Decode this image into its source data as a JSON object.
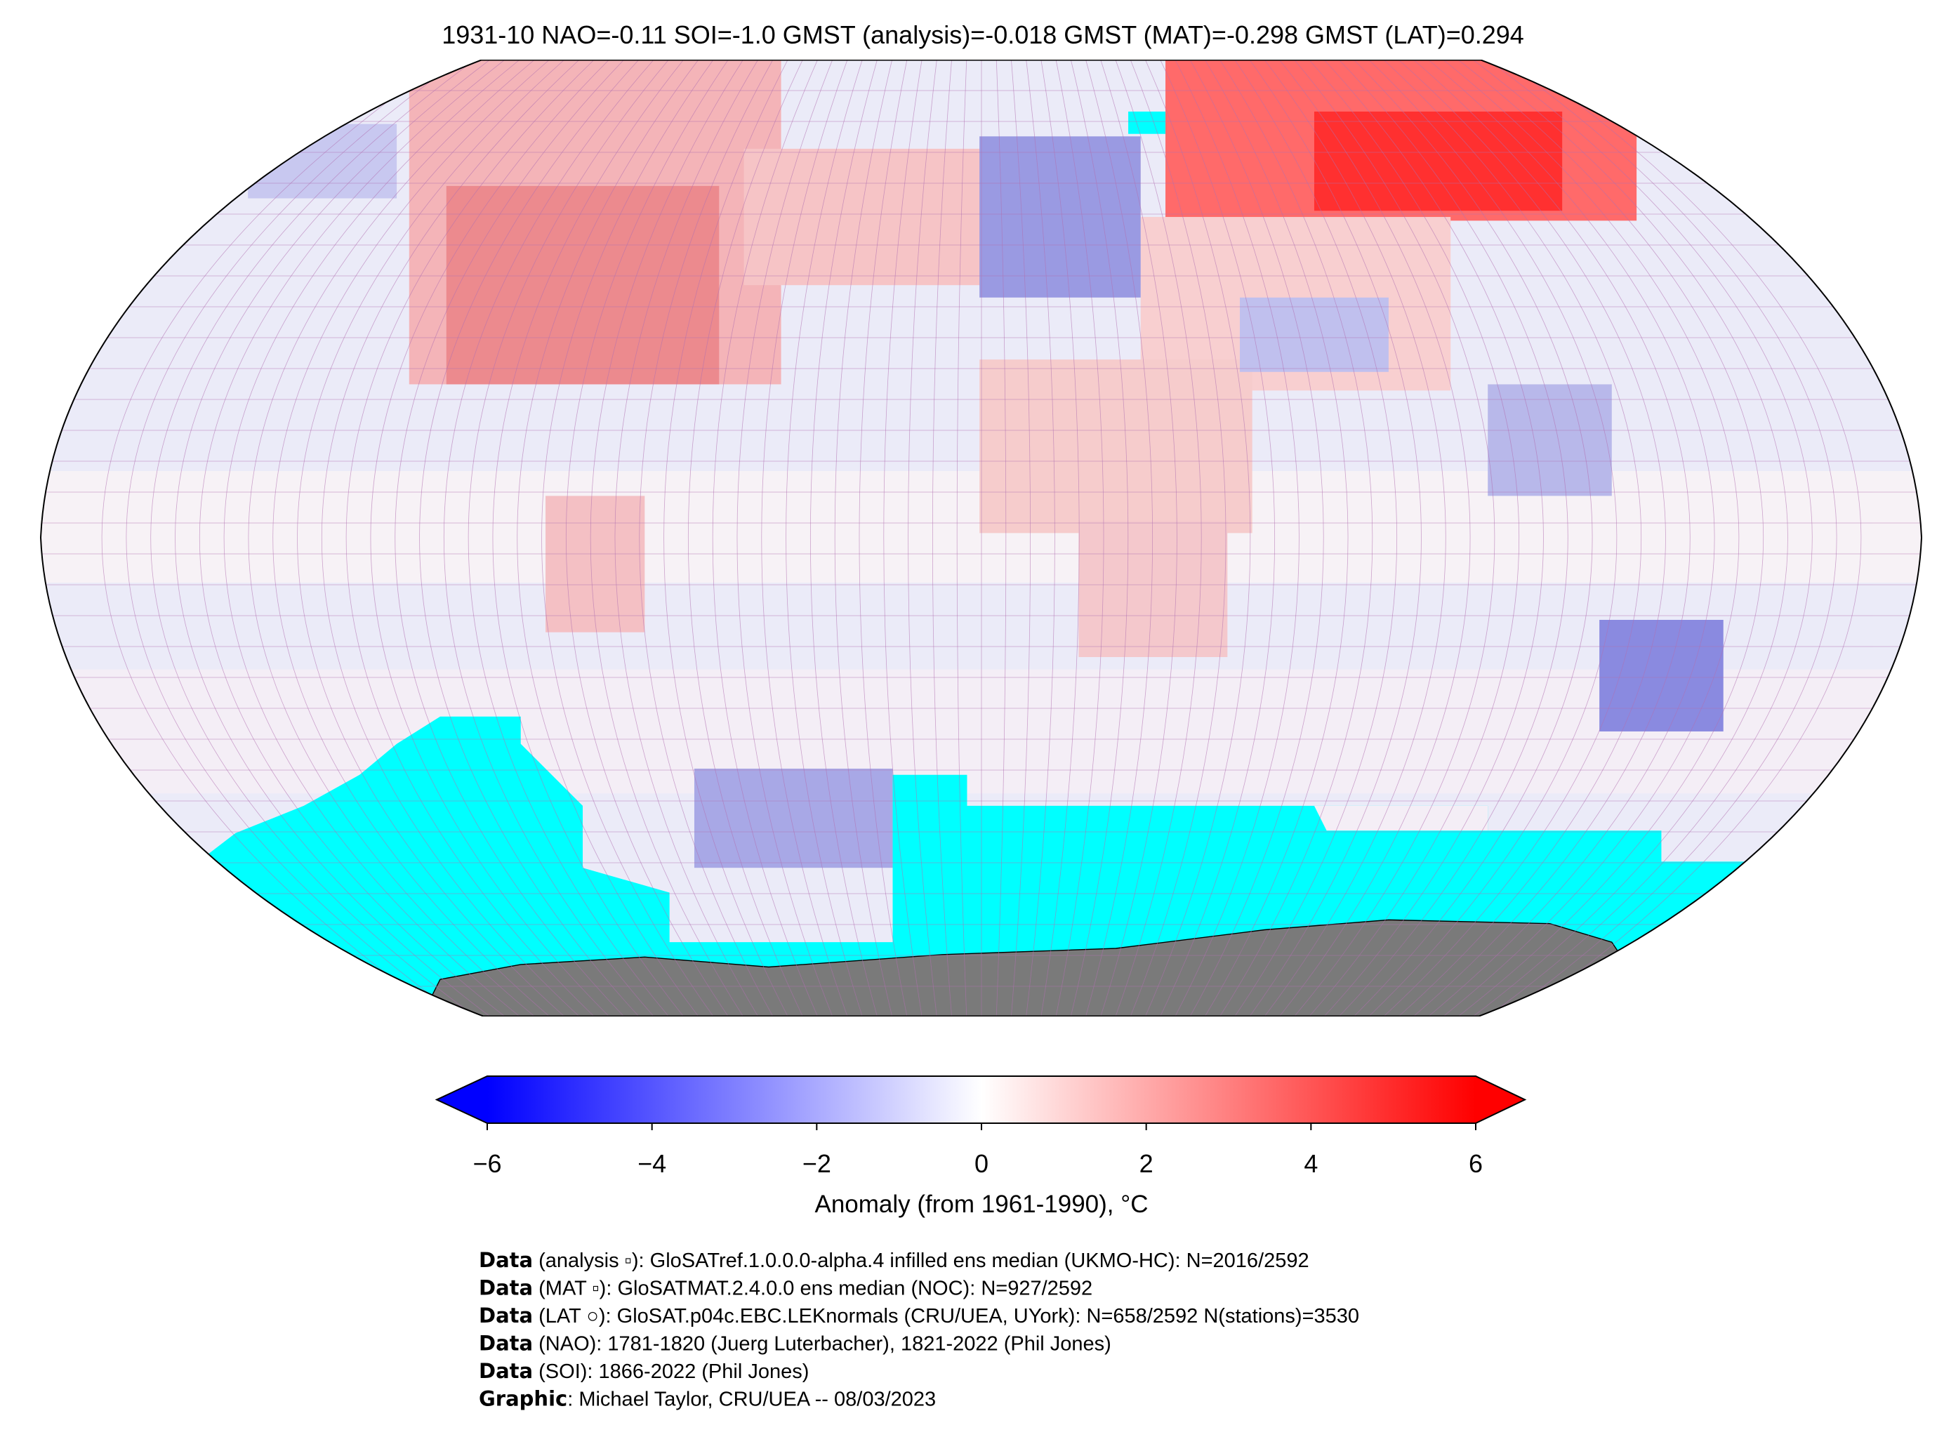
{
  "title": "1931-10 NAO=-0.11 SOI=-1.0 GMST (analysis)=-0.018 GMST (MAT)=-0.298 GMST (LAT)=0.294",
  "colorbar": {
    "label": "Anomaly (from 1961-1990), °C",
    "lim": [
      -6,
      6
    ],
    "ticks": [
      {
        "value": -6,
        "label": "−6"
      },
      {
        "value": -4,
        "label": "−4"
      },
      {
        "value": -2,
        "label": "−2"
      },
      0,
      2,
      4,
      6
    ],
    "colors": [
      "#0000ff",
      "#ffffff",
      "#ff0000"
    ]
  },
  "footer": {
    "lines": [
      {
        "bold": "Data",
        "text": " (analysis ▫): GloSATref.1.0.0.0-alpha.4 infilled ens median (UKMO-HC): N=2016/2592"
      },
      {
        "bold": "Data",
        "text": " (MAT ▫): GloSATMAT.2.4.0.0 ens median (NOC): N=927/2592"
      },
      {
        "bold": "Data",
        "text": " (LAT ○): GloSAT.p04c.EBC.LEKnormals (CRU/UEA, UYork): N=658/2592 N(stations)=3530"
      },
      {
        "bold": "Data",
        "text": " (NAO): 1781-1820 (Juerg Luterbacher), 1821-2022 (Phil Jones)"
      },
      {
        "bold": "Data",
        "text": " (SOI): 1866-2022 (Phil Jones)"
      },
      {
        "bold": "Graphic",
        "text": ": Michael Taylor, CRU/UEA -- 08/03/2023"
      }
    ]
  }
}
